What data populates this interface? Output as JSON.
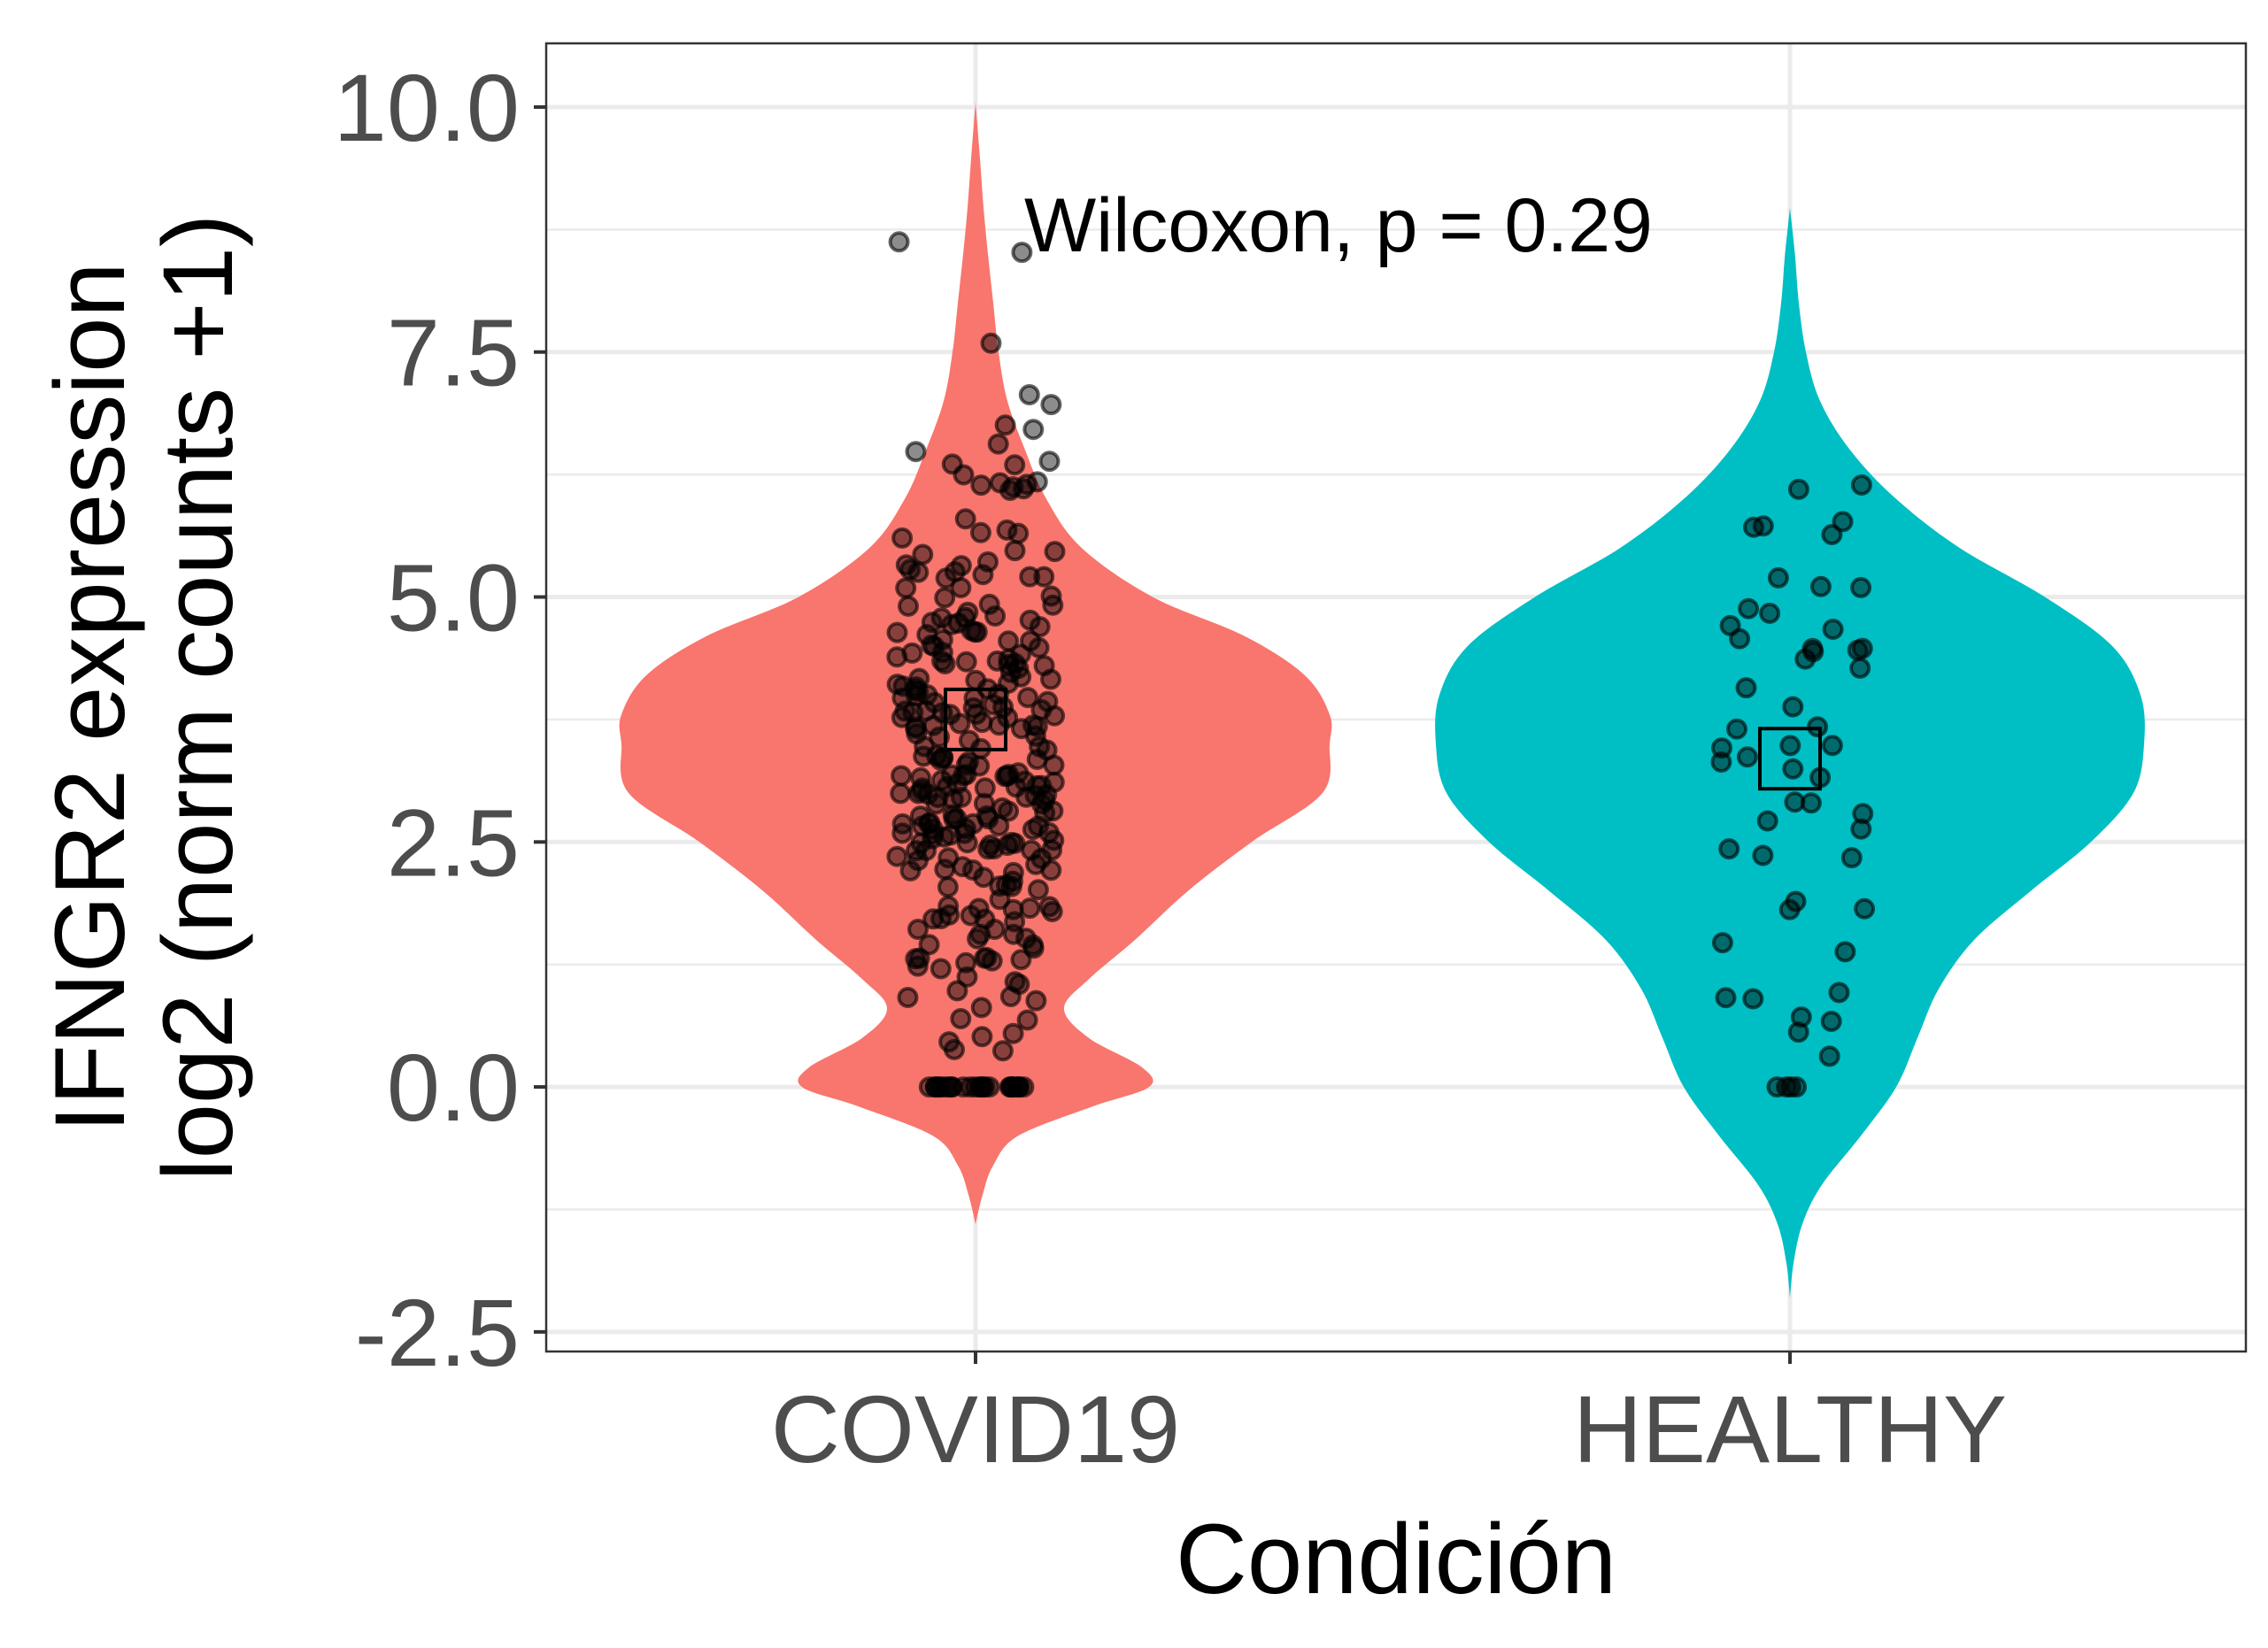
{
  "chart_data": {
    "type": "violin",
    "xlabel": "Condición",
    "ylabel_lines": [
      "IFNGR2 expression",
      "log2 (norm counts +1)"
    ],
    "ylim": [
      -2.7,
      10.65
    ],
    "y_ticks": [
      -2.5,
      0.0,
      2.5,
      5.0,
      7.5,
      10.0
    ],
    "y_tick_labels": [
      "-2.5",
      "0.0",
      "2.5",
      "5.0",
      "7.5",
      "10.0"
    ],
    "y_minor_ticks": [
      -1.25,
      1.25,
      3.75,
      6.25,
      8.75
    ],
    "categories": [
      "COVID19",
      "HEALTHY"
    ],
    "grid": true,
    "legend": "none",
    "annotation": {
      "text": "Wilcoxon, p = 0.29",
      "x_category": "COVID19",
      "x_offset": 0.06,
      "y": 8.8
    },
    "series": [
      {
        "category": "COVID19",
        "color": "#F8766D",
        "mean_marker": 3.75,
        "density_profile": [
          [
            -1.4,
            0.0
          ],
          [
            -1.1,
            0.02
          ],
          [
            -0.8,
            0.05
          ],
          [
            -0.5,
            0.12
          ],
          [
            -0.2,
            0.33
          ],
          [
            0.0,
            0.49
          ],
          [
            0.2,
            0.47
          ],
          [
            0.5,
            0.32
          ],
          [
            0.8,
            0.25
          ],
          [
            1.1,
            0.32
          ],
          [
            1.5,
            0.45
          ],
          [
            2.0,
            0.6
          ],
          [
            2.5,
            0.78
          ],
          [
            3.0,
            0.98
          ],
          [
            3.5,
            1.0
          ],
          [
            3.8,
            1.0
          ],
          [
            4.2,
            0.93
          ],
          [
            4.6,
            0.76
          ],
          [
            5.0,
            0.5
          ],
          [
            5.5,
            0.3
          ],
          [
            6.0,
            0.2
          ],
          [
            6.5,
            0.14
          ],
          [
            7.0,
            0.09
          ],
          [
            7.5,
            0.065
          ],
          [
            8.0,
            0.05
          ],
          [
            8.5,
            0.035
          ],
          [
            9.0,
            0.022
          ],
          [
            9.5,
            0.012
          ],
          [
            10.05,
            0.0
          ]
        ],
        "points_summary": {
          "count_approx": 300,
          "zero_count_approx": 25,
          "range": [
            0.0,
            8.7
          ]
        }
      },
      {
        "category": "HEALTHY",
        "color": "#00BFC4",
        "mean_marker": 3.35,
        "density_profile": [
          [
            -2.15,
            0.0
          ],
          [
            -1.8,
            0.01
          ],
          [
            -1.4,
            0.035
          ],
          [
            -1.0,
            0.09
          ],
          [
            -0.5,
            0.2
          ],
          [
            0.0,
            0.3
          ],
          [
            0.5,
            0.36
          ],
          [
            1.0,
            0.42
          ],
          [
            1.5,
            0.52
          ],
          [
            2.0,
            0.68
          ],
          [
            2.5,
            0.85
          ],
          [
            3.0,
            0.97
          ],
          [
            3.5,
            1.0
          ],
          [
            4.0,
            0.99
          ],
          [
            4.5,
            0.91
          ],
          [
            5.0,
            0.72
          ],
          [
            5.5,
            0.48
          ],
          [
            6.0,
            0.3
          ],
          [
            6.5,
            0.17
          ],
          [
            7.0,
            0.085
          ],
          [
            7.5,
            0.045
          ],
          [
            8.0,
            0.025
          ],
          [
            8.5,
            0.014
          ],
          [
            8.97,
            0.0
          ]
        ],
        "points_summary": {
          "count_approx": 55,
          "zero_count_approx": 4,
          "range": [
            0.0,
            6.85
          ]
        }
      }
    ]
  }
}
